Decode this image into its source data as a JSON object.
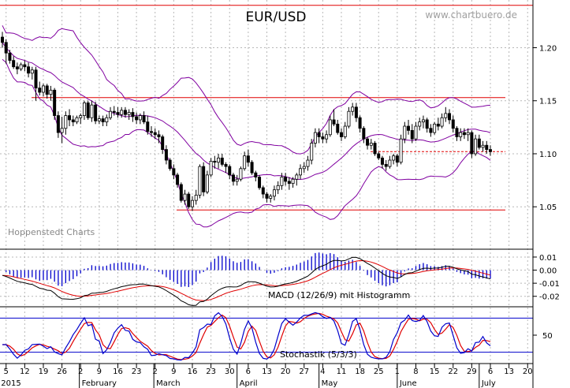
{
  "header": {
    "title": "EUR/USD",
    "watermark": "www.chartbuero.de",
    "source": "Hoppenstedt Charts"
  },
  "chart_data": [
    {
      "type": "candlestick",
      "name": "EUR/USD",
      "ylim": [
        1.01,
        1.245
      ],
      "y_ticks": [
        "1.20",
        "1.15",
        "1.10",
        "1.05"
      ],
      "y_tick_values": [
        1.2,
        1.15,
        1.1,
        1.05
      ],
      "grid": true,
      "resistance_lines": [
        1.24,
        1.153,
        1.047
      ],
      "dashed_line": 1.102,
      "overlays": [
        "Bollinger bands",
        "moving average"
      ],
      "candles": [
        {
          "d": "Jan 02",
          "o": 1.21,
          "h": 1.215,
          "l": 1.2,
          "c": 1.205
        },
        {
          "d": "Jan 05",
          "o": 1.205,
          "h": 1.208,
          "l": 1.185,
          "c": 1.195
        },
        {
          "d": "Jan 06",
          "o": 1.195,
          "h": 1.198,
          "l": 1.185,
          "c": 1.188
        },
        {
          "d": "Jan 07",
          "o": 1.188,
          "h": 1.192,
          "l": 1.18,
          "c": 1.182
        },
        {
          "d": "Jan 08",
          "o": 1.182,
          "h": 1.186,
          "l": 1.175,
          "c": 1.18
        },
        {
          "d": "Jan 09",
          "o": 1.18,
          "h": 1.186,
          "l": 1.178,
          "c": 1.184
        },
        {
          "d": "Jan 12",
          "o": 1.184,
          "h": 1.188,
          "l": 1.178,
          "c": 1.182
        },
        {
          "d": "Jan 13",
          "o": 1.182,
          "h": 1.186,
          "l": 1.172,
          "c": 1.176
        },
        {
          "d": "Jan 14",
          "o": 1.176,
          "h": 1.182,
          "l": 1.17,
          "c": 1.179
        },
        {
          "d": "Jan 15",
          "o": 1.179,
          "h": 1.182,
          "l": 1.15,
          "c": 1.162
        },
        {
          "d": "Jan 16",
          "o": 1.162,
          "h": 1.168,
          "l": 1.155,
          "c": 1.158
        },
        {
          "d": "Jan 19",
          "o": 1.158,
          "h": 1.166,
          "l": 1.154,
          "c": 1.164
        },
        {
          "d": "Jan 20",
          "o": 1.164,
          "h": 1.166,
          "l": 1.152,
          "c": 1.156
        },
        {
          "d": "Jan 21",
          "o": 1.156,
          "h": 1.164,
          "l": 1.15,
          "c": 1.16
        },
        {
          "d": "Jan 22",
          "o": 1.16,
          "h": 1.162,
          "l": 1.132,
          "c": 1.136
        },
        {
          "d": "Jan 23",
          "o": 1.136,
          "h": 1.14,
          "l": 1.115,
          "c": 1.12
        },
        {
          "d": "Jan 26",
          "o": 1.12,
          "h": 1.135,
          "l": 1.11,
          "c": 1.124
        },
        {
          "d": "Jan 27",
          "o": 1.124,
          "h": 1.14,
          "l": 1.118,
          "c": 1.136
        },
        {
          "d": "Jan 28",
          "o": 1.136,
          "h": 1.142,
          "l": 1.126,
          "c": 1.132
        },
        {
          "d": "Jan 29",
          "o": 1.132,
          "h": 1.136,
          "l": 1.126,
          "c": 1.13
        },
        {
          "d": "Jan 30",
          "o": 1.13,
          "h": 1.136,
          "l": 1.128,
          "c": 1.134
        },
        {
          "d": "Feb 02",
          "o": 1.134,
          "h": 1.138,
          "l": 1.128,
          "c": 1.136
        },
        {
          "d": "Feb 03",
          "o": 1.136,
          "h": 1.15,
          "l": 1.132,
          "c": 1.148
        },
        {
          "d": "Feb 04",
          "o": 1.148,
          "h": 1.15,
          "l": 1.132,
          "c": 1.134
        },
        {
          "d": "Feb 05",
          "o": 1.134,
          "h": 1.15,
          "l": 1.13,
          "c": 1.146
        },
        {
          "d": "Feb 06",
          "o": 1.146,
          "h": 1.149,
          "l": 1.128,
          "c": 1.131
        },
        {
          "d": "Feb 09",
          "o": 1.131,
          "h": 1.136,
          "l": 1.128,
          "c": 1.133
        },
        {
          "d": "Feb 10",
          "o": 1.133,
          "h": 1.136,
          "l": 1.126,
          "c": 1.13
        },
        {
          "d": "Feb 11",
          "o": 1.13,
          "h": 1.137,
          "l": 1.126,
          "c": 1.134
        },
        {
          "d": "Feb 12",
          "o": 1.134,
          "h": 1.144,
          "l": 1.132,
          "c": 1.14
        },
        {
          "d": "Feb 13",
          "o": 1.14,
          "h": 1.145,
          "l": 1.136,
          "c": 1.139
        },
        {
          "d": "Feb 16",
          "o": 1.139,
          "h": 1.144,
          "l": 1.134,
          "c": 1.137
        },
        {
          "d": "Feb 17",
          "o": 1.137,
          "h": 1.144,
          "l": 1.134,
          "c": 1.141
        },
        {
          "d": "Feb 18",
          "o": 1.141,
          "h": 1.144,
          "l": 1.134,
          "c": 1.137
        },
        {
          "d": "Feb 19",
          "o": 1.137,
          "h": 1.142,
          "l": 1.132,
          "c": 1.139
        },
        {
          "d": "Feb 20",
          "o": 1.139,
          "h": 1.143,
          "l": 1.13,
          "c": 1.135
        },
        {
          "d": "Feb 23",
          "o": 1.135,
          "h": 1.139,
          "l": 1.128,
          "c": 1.132
        },
        {
          "d": "Feb 24",
          "o": 1.132,
          "h": 1.138,
          "l": 1.128,
          "c": 1.136
        },
        {
          "d": "Feb 25",
          "o": 1.136,
          "h": 1.14,
          "l": 1.128,
          "c": 1.13
        },
        {
          "d": "Feb 26",
          "o": 1.13,
          "h": 1.136,
          "l": 1.118,
          "c": 1.121
        },
        {
          "d": "Feb 27",
          "o": 1.121,
          "h": 1.126,
          "l": 1.116,
          "c": 1.12
        },
        {
          "d": "Mar 02",
          "o": 1.12,
          "h": 1.124,
          "l": 1.114,
          "c": 1.118
        },
        {
          "d": "Mar 03",
          "o": 1.118,
          "h": 1.122,
          "l": 1.11,
          "c": 1.116
        },
        {
          "d": "Mar 04",
          "o": 1.116,
          "h": 1.118,
          "l": 1.1,
          "c": 1.104
        },
        {
          "d": "Mar 05",
          "o": 1.104,
          "h": 1.108,
          "l": 1.09,
          "c": 1.094
        },
        {
          "d": "Mar 06",
          "o": 1.094,
          "h": 1.096,
          "l": 1.084,
          "c": 1.086
        },
        {
          "d": "Mar 09",
          "o": 1.086,
          "h": 1.09,
          "l": 1.076,
          "c": 1.08
        },
        {
          "d": "Mar 10",
          "o": 1.08,
          "h": 1.082,
          "l": 1.068,
          "c": 1.071
        },
        {
          "d": "Mar 11",
          "o": 1.071,
          "h": 1.073,
          "l": 1.054,
          "c": 1.056
        },
        {
          "d": "Mar 12",
          "o": 1.056,
          "h": 1.066,
          "l": 1.052,
          "c": 1.062
        },
        {
          "d": "Mar 13",
          "o": 1.062,
          "h": 1.064,
          "l": 1.048,
          "c": 1.05
        },
        {
          "d": "Mar 16",
          "o": 1.05,
          "h": 1.06,
          "l": 1.046,
          "c": 1.056
        },
        {
          "d": "Mar 17",
          "o": 1.056,
          "h": 1.066,
          "l": 1.052,
          "c": 1.061
        },
        {
          "d": "Mar 18",
          "o": 1.061,
          "h": 1.09,
          "l": 1.058,
          "c": 1.088
        },
        {
          "d": "Mar 19",
          "o": 1.088,
          "h": 1.092,
          "l": 1.06,
          "c": 1.064
        },
        {
          "d": "Mar 20",
          "o": 1.064,
          "h": 1.084,
          "l": 1.062,
          "c": 1.08
        },
        {
          "d": "Mar 23",
          "o": 1.08,
          "h": 1.096,
          "l": 1.078,
          "c": 1.093
        },
        {
          "d": "Mar 24",
          "o": 1.093,
          "h": 1.098,
          "l": 1.086,
          "c": 1.092
        },
        {
          "d": "Mar 25",
          "o": 1.092,
          "h": 1.1,
          "l": 1.086,
          "c": 1.096
        },
        {
          "d": "Mar 26",
          "o": 1.096,
          "h": 1.1,
          "l": 1.088,
          "c": 1.09
        },
        {
          "d": "Mar 27",
          "o": 1.09,
          "h": 1.092,
          "l": 1.082,
          "c": 1.088
        },
        {
          "d": "Mar 30",
          "o": 1.088,
          "h": 1.09,
          "l": 1.076,
          "c": 1.08
        },
        {
          "d": "Mar 31",
          "o": 1.08,
          "h": 1.082,
          "l": 1.07,
          "c": 1.074
        },
        {
          "d": "Apr 01",
          "o": 1.074,
          "h": 1.08,
          "l": 1.07,
          "c": 1.076
        },
        {
          "d": "Apr 02",
          "o": 1.076,
          "h": 1.088,
          "l": 1.074,
          "c": 1.086
        },
        {
          "d": "Apr 03",
          "o": 1.086,
          "h": 1.102,
          "l": 1.084,
          "c": 1.098
        },
        {
          "d": "Apr 06",
          "o": 1.098,
          "h": 1.104,
          "l": 1.088,
          "c": 1.092
        },
        {
          "d": "Apr 07",
          "o": 1.092,
          "h": 1.094,
          "l": 1.08,
          "c": 1.082
        },
        {
          "d": "Apr 08",
          "o": 1.082,
          "h": 1.084,
          "l": 1.074,
          "c": 1.078
        },
        {
          "d": "Apr 09",
          "o": 1.078,
          "h": 1.08,
          "l": 1.066,
          "c": 1.068
        },
        {
          "d": "Apr 10",
          "o": 1.068,
          "h": 1.07,
          "l": 1.058,
          "c": 1.062
        },
        {
          "d": "Apr 13",
          "o": 1.062,
          "h": 1.064,
          "l": 1.054,
          "c": 1.058
        },
        {
          "d": "Apr 14",
          "o": 1.058,
          "h": 1.062,
          "l": 1.054,
          "c": 1.06
        },
        {
          "d": "Apr 15",
          "o": 1.06,
          "h": 1.07,
          "l": 1.056,
          "c": 1.066
        },
        {
          "d": "Apr 16",
          "o": 1.066,
          "h": 1.074,
          "l": 1.062,
          "c": 1.07
        },
        {
          "d": "Apr 17",
          "o": 1.07,
          "h": 1.082,
          "l": 1.066,
          "c": 1.078
        },
        {
          "d": "Apr 20",
          "o": 1.078,
          "h": 1.082,
          "l": 1.07,
          "c": 1.074
        },
        {
          "d": "Apr 21",
          "o": 1.074,
          "h": 1.078,
          "l": 1.066,
          "c": 1.072
        },
        {
          "d": "Apr 22",
          "o": 1.072,
          "h": 1.078,
          "l": 1.068,
          "c": 1.076
        },
        {
          "d": "Apr 23",
          "o": 1.076,
          "h": 1.082,
          "l": 1.07,
          "c": 1.08
        },
        {
          "d": "Apr 24",
          "o": 1.08,
          "h": 1.09,
          "l": 1.076,
          "c": 1.086
        },
        {
          "d": "Apr 27",
          "o": 1.086,
          "h": 1.092,
          "l": 1.082,
          "c": 1.088
        },
        {
          "d": "Apr 28",
          "o": 1.088,
          "h": 1.098,
          "l": 1.084,
          "c": 1.094
        },
        {
          "d": "Apr 29",
          "o": 1.094,
          "h": 1.114,
          "l": 1.09,
          "c": 1.11
        },
        {
          "d": "Apr 30",
          "o": 1.11,
          "h": 1.124,
          "l": 1.106,
          "c": 1.12
        },
        {
          "d": "May 01",
          "o": 1.12,
          "h": 1.124,
          "l": 1.11,
          "c": 1.116
        },
        {
          "d": "May 04",
          "o": 1.116,
          "h": 1.12,
          "l": 1.11,
          "c": 1.114
        },
        {
          "d": "May 05",
          "o": 1.114,
          "h": 1.122,
          "l": 1.11,
          "c": 1.118
        },
        {
          "d": "May 06",
          "o": 1.118,
          "h": 1.136,
          "l": 1.116,
          "c": 1.132
        },
        {
          "d": "May 07",
          "o": 1.132,
          "h": 1.142,
          "l": 1.126,
          "c": 1.128
        },
        {
          "d": "May 08",
          "o": 1.128,
          "h": 1.132,
          "l": 1.118,
          "c": 1.12
        },
        {
          "d": "May 11",
          "o": 1.12,
          "h": 1.124,
          "l": 1.112,
          "c": 1.116
        },
        {
          "d": "May 12",
          "o": 1.116,
          "h": 1.13,
          "l": 1.114,
          "c": 1.126
        },
        {
          "d": "May 13",
          "o": 1.126,
          "h": 1.144,
          "l": 1.124,
          "c": 1.14
        },
        {
          "d": "May 14",
          "o": 1.14,
          "h": 1.148,
          "l": 1.136,
          "c": 1.144
        },
        {
          "d": "May 15",
          "o": 1.144,
          "h": 1.148,
          "l": 1.13,
          "c": 1.134
        },
        {
          "d": "May 18",
          "o": 1.134,
          "h": 1.136,
          "l": 1.12,
          "c": 1.124
        },
        {
          "d": "May 19",
          "o": 1.124,
          "h": 1.126,
          "l": 1.11,
          "c": 1.114
        },
        {
          "d": "May 20",
          "o": 1.114,
          "h": 1.116,
          "l": 1.104,
          "c": 1.108
        },
        {
          "d": "May 21",
          "o": 1.108,
          "h": 1.114,
          "l": 1.104,
          "c": 1.11
        },
        {
          "d": "May 22",
          "o": 1.11,
          "h": 1.112,
          "l": 1.098,
          "c": 1.1
        },
        {
          "d": "May 25",
          "o": 1.1,
          "h": 1.102,
          "l": 1.094,
          "c": 1.096
        },
        {
          "d": "May 26",
          "o": 1.096,
          "h": 1.098,
          "l": 1.086,
          "c": 1.09
        },
        {
          "d": "May 27",
          "o": 1.09,
          "h": 1.094,
          "l": 1.084,
          "c": 1.088
        },
        {
          "d": "May 28",
          "o": 1.088,
          "h": 1.098,
          "l": 1.086,
          "c": 1.094
        },
        {
          "d": "May 29",
          "o": 1.094,
          "h": 1.1,
          "l": 1.09,
          "c": 1.098
        },
        {
          "d": "Jun 01",
          "o": 1.098,
          "h": 1.1,
          "l": 1.088,
          "c": 1.092
        },
        {
          "d": "Jun 02",
          "o": 1.092,
          "h": 1.118,
          "l": 1.09,
          "c": 1.114
        },
        {
          "d": "Jun 03",
          "o": 1.114,
          "h": 1.13,
          "l": 1.11,
          "c": 1.126
        },
        {
          "d": "Jun 04",
          "o": 1.126,
          "h": 1.132,
          "l": 1.118,
          "c": 1.122
        },
        {
          "d": "Jun 05",
          "o": 1.122,
          "h": 1.128,
          "l": 1.11,
          "c": 1.114
        },
        {
          "d": "Jun 08",
          "o": 1.114,
          "h": 1.13,
          "l": 1.112,
          "c": 1.126
        },
        {
          "d": "Jun 09",
          "o": 1.126,
          "h": 1.134,
          "l": 1.122,
          "c": 1.13
        },
        {
          "d": "Jun 10",
          "o": 1.13,
          "h": 1.136,
          "l": 1.124,
          "c": 1.132
        },
        {
          "d": "Jun 11",
          "o": 1.132,
          "h": 1.134,
          "l": 1.12,
          "c": 1.124
        },
        {
          "d": "Jun 12",
          "o": 1.124,
          "h": 1.128,
          "l": 1.116,
          "c": 1.12
        },
        {
          "d": "Jun 15",
          "o": 1.12,
          "h": 1.13,
          "l": 1.118,
          "c": 1.128
        },
        {
          "d": "Jun 16",
          "o": 1.128,
          "h": 1.134,
          "l": 1.122,
          "c": 1.126
        },
        {
          "d": "Jun 17",
          "o": 1.126,
          "h": 1.138,
          "l": 1.124,
          "c": 1.134
        },
        {
          "d": "Jun 18",
          "o": 1.134,
          "h": 1.144,
          "l": 1.13,
          "c": 1.138
        },
        {
          "d": "Jun 19",
          "o": 1.138,
          "h": 1.142,
          "l": 1.128,
          "c": 1.132
        },
        {
          "d": "Jun 22",
          "o": 1.132,
          "h": 1.136,
          "l": 1.12,
          "c": 1.124
        },
        {
          "d": "Jun 23",
          "o": 1.124,
          "h": 1.126,
          "l": 1.112,
          "c": 1.116
        },
        {
          "d": "Jun 24",
          "o": 1.116,
          "h": 1.124,
          "l": 1.112,
          "c": 1.12
        },
        {
          "d": "Jun 25",
          "o": 1.12,
          "h": 1.124,
          "l": 1.114,
          "c": 1.118
        },
        {
          "d": "Jun 26",
          "o": 1.118,
          "h": 1.124,
          "l": 1.112,
          "c": 1.12
        },
        {
          "d": "Jun 29",
          "o": 1.12,
          "h": 1.122,
          "l": 1.096,
          "c": 1.1
        },
        {
          "d": "Jun 30",
          "o": 1.1,
          "h": 1.118,
          "l": 1.098,
          "c": 1.114
        },
        {
          "d": "Jul 01",
          "o": 1.114,
          "h": 1.118,
          "l": 1.104,
          "c": 1.106
        },
        {
          "d": "Jul 02",
          "o": 1.106,
          "h": 1.112,
          "l": 1.102,
          "c": 1.108
        },
        {
          "d": "Jul 03",
          "o": 1.108,
          "h": 1.112,
          "l": 1.1,
          "c": 1.104
        },
        {
          "d": "Jul 06",
          "o": 1.104,
          "h": 1.108,
          "l": 1.098,
          "c": 1.102
        }
      ]
    },
    {
      "type": "line",
      "name": "MACD",
      "label": "MACD (12/26/9) mit Histogramm",
      "ylim": [
        -0.028,
        0.016
      ],
      "y_ticks": [
        "0.01",
        "0.00",
        "-0.01",
        "-0.02"
      ],
      "y_tick_values": [
        0.01,
        0.0,
        -0.01,
        -0.02
      ],
      "series_colors": {
        "macd": "#000000",
        "signal": "#e00000",
        "histogram": "#0000cc"
      }
    },
    {
      "type": "line",
      "name": "Stochastik",
      "label": "Stochastik (5/3/3)",
      "ylim": [
        0,
        100
      ],
      "y_ticks": [
        "50"
      ],
      "y_tick_values": [
        50
      ],
      "levels": [
        80,
        20
      ],
      "series_colors": {
        "k": "#0000cc",
        "d": "#e00000"
      }
    }
  ],
  "x_axis": {
    "day_labels": [
      "5",
      "12",
      "19",
      "26",
      "2",
      "9",
      "16",
      "23",
      "2",
      "9",
      "16",
      "23",
      "30",
      "6",
      "13",
      "20",
      "27",
      "4",
      "11",
      "18",
      "25",
      "1",
      "8",
      "15",
      "22",
      "29",
      "6",
      "13",
      "20"
    ],
    "month_labels": [
      {
        "label": "2015",
        "at": "Jan 01"
      },
      {
        "label": "February",
        "at": "Feb 01"
      },
      {
        "label": "March",
        "at": "Mar 01"
      },
      {
        "label": "April",
        "at": "Apr 01"
      },
      {
        "label": "May",
        "at": "May 01"
      },
      {
        "label": "June",
        "at": "Jun 01"
      },
      {
        "label": "July",
        "at": "Jul 01"
      }
    ]
  },
  "colors": {
    "grid": "#b8b8b8",
    "hline": "#e00000",
    "band": "#8000a0",
    "candle": "#000000",
    "level_line": "#0000cc"
  }
}
